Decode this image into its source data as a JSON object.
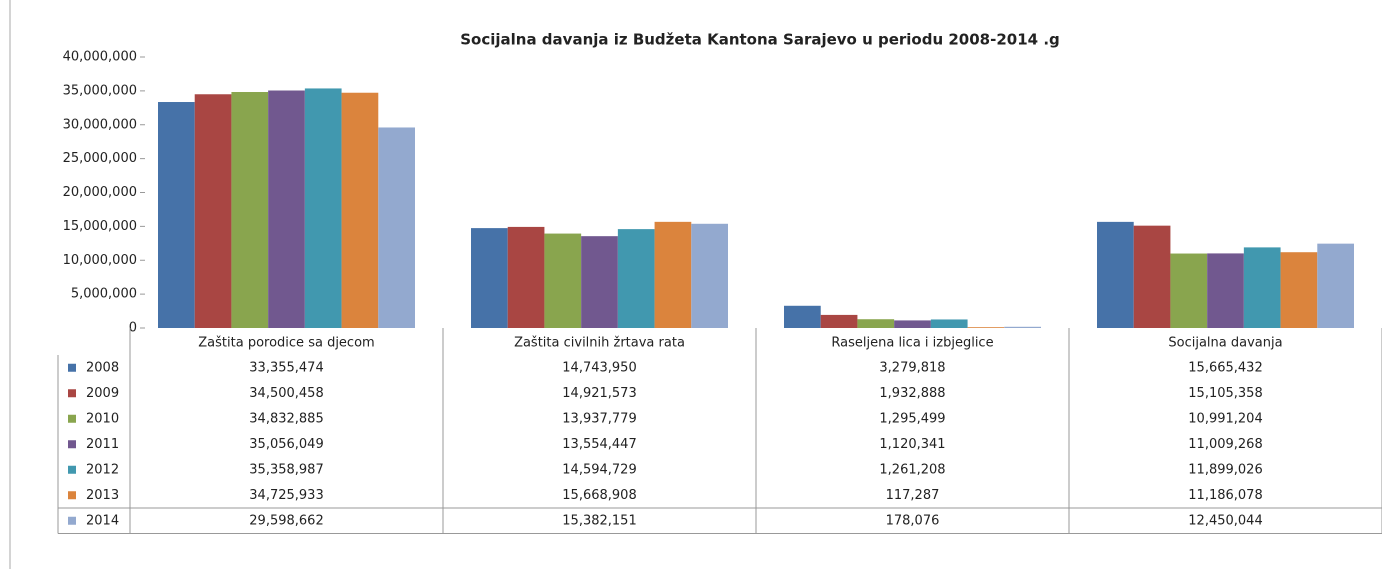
{
  "chart_data": {
    "type": "bar",
    "title": "Socijalna davanja iz Budžeta Kantona Sarajevo u periodu 2008-2014 .g",
    "categories": [
      "Zaštita porodice sa djecom",
      "Zaštita civilnih žrtava rata",
      "Raseljena lica i izbjeglice",
      "Socijalna davanja"
    ],
    "series": [
      {
        "name": "2008",
        "color": "#4672a8",
        "values": [
          33355474,
          14743950,
          3279818,
          15665432
        ],
        "value_labels": [
          "33,355,474",
          "14,743,950",
          "3,279,818",
          "15,665,432"
        ]
      },
      {
        "name": "2009",
        "color": "#a94643",
        "values": [
          34500458,
          14921573,
          1932888,
          15105358
        ],
        "value_labels": [
          "34,500,458",
          "14,921,573",
          "1,932,888",
          "15,105,358"
        ]
      },
      {
        "name": "2010",
        "color": "#89a54e",
        "values": [
          34832885,
          13937779,
          1295499,
          10991204
        ],
        "value_labels": [
          "34,832,885",
          "13,937,779",
          "1,295,499",
          "10,991,204"
        ]
      },
      {
        "name": "2011",
        "color": "#71588f",
        "values": [
          35056049,
          13554447,
          1120341,
          11009268
        ],
        "value_labels": [
          "35,056,049",
          "13,554,447",
          "1,120,341",
          "11,009,268"
        ]
      },
      {
        "name": "2012",
        "color": "#4198af",
        "values": [
          35358987,
          14594729,
          1261208,
          11899026
        ],
        "value_labels": [
          "35,358,987",
          "14,594,729",
          "1,261,208",
          "11,899,026"
        ]
      },
      {
        "name": "2013",
        "color": "#db843d",
        "values": [
          34725933,
          15668908,
          117287,
          11186078
        ],
        "value_labels": [
          "34,725,933",
          "15,668,908",
          "117,287",
          "11,186,078"
        ]
      },
      {
        "name": "2014",
        "color": "#93a9cf",
        "values": [
          29598662,
          15382151,
          178076,
          12450044
        ],
        "value_labels": [
          "29,598,662",
          "15,382,151",
          "178,076",
          "12,450,044"
        ]
      }
    ],
    "ylim": [
      0,
      40000000
    ],
    "yticks": [
      0,
      {
        "value": 5000000,
        "label": "5,000,000"
      },
      {
        "value": 10000000,
        "label": "10,000,000"
      },
      {
        "value": 15000000,
        "label": "15,000,000"
      },
      {
        "value": 20000000,
        "label": "20,000,000"
      },
      {
        "value": 25000000,
        "label": "25,000,000"
      },
      {
        "value": 30000000,
        "label": "30,000,000"
      },
      {
        "value": 35000000,
        "label": "35,000,000"
      },
      {
        "value": 40000000,
        "label": "40,000,000"
      }
    ]
  }
}
